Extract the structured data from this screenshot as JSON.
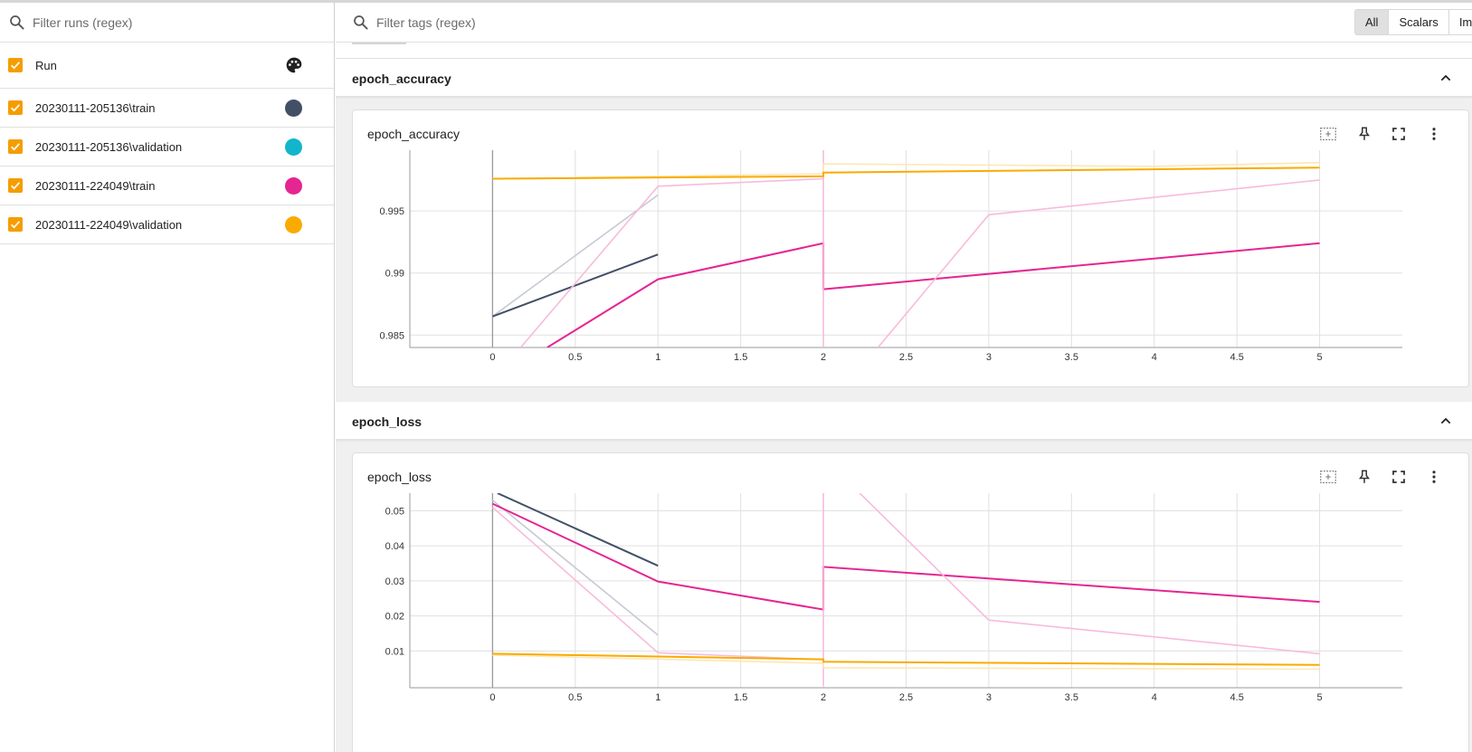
{
  "runs_panel": {
    "filter_placeholder": "Filter runs (regex)",
    "header_label": "Run",
    "palette_icon": "palette-icon",
    "runs": [
      {
        "label": "20230111-205136\\train",
        "color": "#425066"
      },
      {
        "label": "20230111-205136\\validation",
        "color": "#12b5cb"
      },
      {
        "label": "20230111-224049\\train",
        "color": "#e52592"
      },
      {
        "label": "20230111-224049\\validation",
        "color": "#f9ab00"
      }
    ]
  },
  "tag_filter": {
    "placeholder": "Filter tags (regex)",
    "tabs": [
      {
        "label": "All",
        "active": true
      },
      {
        "label": "Scalars",
        "active": false
      },
      {
        "label": "Im",
        "active": false
      }
    ]
  },
  "groups": [
    {
      "title": "epoch_accuracy",
      "card_title": "epoch_accuracy"
    },
    {
      "title": "epoch_loss",
      "card_title": "epoch_loss"
    }
  ],
  "card_tools": [
    "fit-domain-icon",
    "pin-icon",
    "fullscreen-icon",
    "more-vert-icon"
  ],
  "chart_data": [
    {
      "type": "line",
      "title": "epoch_accuracy",
      "xlabel": "",
      "ylabel": "",
      "xlim": [
        -0.5,
        5.5
      ],
      "ylim": [
        0.984,
        0.9999
      ],
      "x_ticks": [
        "0",
        "0.5",
        "1",
        "1.5",
        "2",
        "2.5",
        "3",
        "3.5",
        "4",
        "4.5",
        "5"
      ],
      "y_ticks": [
        "0.985",
        "0.99",
        "0.995"
      ],
      "grid": true,
      "series": [
        {
          "color": "#c5cad5",
          "points": [
            [
              0,
              0.9865
            ],
            [
              1,
              0.9963
            ]
          ]
        },
        {
          "color": "#425066",
          "points": [
            [
              0,
              0.9865
            ],
            [
              1,
              0.9915
            ]
          ]
        },
        {
          "color": "#f8bbdb",
          "points": [
            [
              0.17,
              0.984
            ],
            [
              1,
              0.997
            ],
            [
              2,
              0.9976
            ]
          ]
        },
        {
          "color": "#e52592",
          "points": [
            [
              0.33,
              0.984
            ],
            [
              1,
              0.9895
            ],
            [
              2,
              0.9924
            ],
            [
              2,
              0.9887
            ],
            [
              5,
              0.9924
            ]
          ]
        },
        {
          "color": "#f8bbdb",
          "points": [
            [
              2,
              0.9999
            ],
            [
              2,
              0.984
            ]
          ]
        },
        {
          "color": "#f8bbdb",
          "points": [
            [
              2.33,
              0.984
            ],
            [
              3,
              0.9947
            ],
            [
              5,
              0.9975
            ]
          ]
        },
        {
          "color": "#fde7b5",
          "points": [
            [
              0,
              0.9976
            ],
            [
              2,
              0.998
            ],
            [
              2,
              0.9988
            ],
            [
              4,
              0.9986
            ],
            [
              5,
              0.9989
            ]
          ]
        },
        {
          "color": "#f9ab00",
          "points": [
            [
              0,
              0.9976
            ],
            [
              2,
              0.9978
            ],
            [
              2,
              0.9981
            ],
            [
              5,
              0.9985
            ]
          ]
        }
      ]
    },
    {
      "type": "line",
      "title": "epoch_loss",
      "xlabel": "",
      "ylabel": "",
      "xlim": [
        -0.5,
        5.5
      ],
      "ylim": [
        -0.0005,
        0.055
      ],
      "x_ticks": [
        "0",
        "0.5",
        "1",
        "1.5",
        "2",
        "2.5",
        "3",
        "3.5",
        "4",
        "4.5",
        "5"
      ],
      "y_ticks": [
        "0.01",
        "0.02",
        "0.03",
        "0.04",
        "0.05"
      ],
      "grid": true,
      "series": [
        {
          "color": "#c5cad5",
          "points": [
            [
              0,
              0.053
            ],
            [
              1,
              0.0145
            ]
          ]
        },
        {
          "color": "#425066",
          "points": [
            [
              0.03,
              0.055
            ],
            [
              1,
              0.0343
            ]
          ]
        },
        {
          "color": "#f8bbdb",
          "points": [
            [
              0,
              0.051
            ],
            [
              1,
              0.0095
            ],
            [
              2,
              0.0075
            ]
          ]
        },
        {
          "color": "#e52592",
          "points": [
            [
              0,
              0.052
            ],
            [
              1,
              0.0298
            ],
            [
              2,
              0.0218
            ],
            [
              2,
              0.034
            ],
            [
              5,
              0.024
            ]
          ]
        },
        {
          "color": "#f8bbdb",
          "points": [
            [
              2,
              0.055
            ],
            [
              2,
              0.0
            ]
          ]
        },
        {
          "color": "#f8bbdb",
          "points": [
            [
              2.22,
              0.055
            ],
            [
              3,
              0.0188
            ],
            [
              5,
              0.0092
            ]
          ]
        },
        {
          "color": "#fde7b5",
          "points": [
            [
              0,
              0.0088
            ],
            [
              2,
              0.0065
            ],
            [
              2,
              0.0052
            ],
            [
              5,
              0.0048
            ]
          ]
        },
        {
          "color": "#f9ab00",
          "points": [
            [
              0,
              0.0092
            ],
            [
              2,
              0.0076
            ],
            [
              2,
              0.0069
            ],
            [
              5,
              0.006
            ]
          ]
        }
      ]
    }
  ]
}
